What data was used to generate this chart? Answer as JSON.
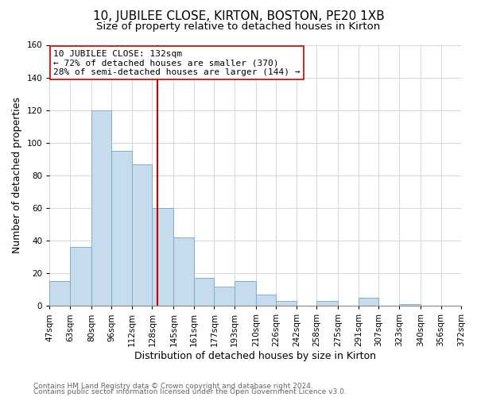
{
  "title": "10, JUBILEE CLOSE, KIRTON, BOSTON, PE20 1XB",
  "subtitle": "Size of property relative to detached houses in Kirton",
  "xlabel": "Distribution of detached houses by size in Kirton",
  "ylabel": "Number of detached properties",
  "footer_line1": "Contains HM Land Registry data © Crown copyright and database right 2024.",
  "footer_line2": "Contains public sector information licensed under the Open Government Licence v3.0.",
  "bar_edges": [
    47,
    63,
    80,
    96,
    112,
    128,
    145,
    161,
    177,
    193,
    210,
    226,
    242,
    258,
    275,
    291,
    307,
    323,
    340,
    356,
    372
  ],
  "bar_heights": [
    15,
    36,
    120,
    95,
    87,
    60,
    42,
    17,
    12,
    15,
    7,
    3,
    0,
    3,
    0,
    5,
    0,
    1,
    0,
    0
  ],
  "bar_color": "#c6dcec",
  "bar_edge_color": "#7ab0d0",
  "reference_line_x": 132,
  "reference_line_color": "#cc0000",
  "annotation_title": "10 JUBILEE CLOSE: 132sqm",
  "annotation_line1": "← 72% of detached houses are smaller (370)",
  "annotation_line2": "28% of semi-detached houses are larger (144) →",
  "annotation_box_color": "#ffffff",
  "annotation_border_color": "#cc0000",
  "ylim": [
    0,
    160
  ],
  "yticks": [
    0,
    20,
    40,
    60,
    80,
    100,
    120,
    140,
    160
  ],
  "tick_labels": [
    "47sqm",
    "63sqm",
    "80sqm",
    "96sqm",
    "112sqm",
    "128sqm",
    "145sqm",
    "161sqm",
    "177sqm",
    "193sqm",
    "210sqm",
    "226sqm",
    "242sqm",
    "258sqm",
    "275sqm",
    "291sqm",
    "307sqm",
    "323sqm",
    "340sqm",
    "356sqm",
    "372sqm"
  ],
  "background_color": "#ffffff",
  "grid_color": "#d0d8e0",
  "title_fontsize": 11,
  "subtitle_fontsize": 9.5,
  "axis_label_fontsize": 9,
  "tick_fontsize": 7.5,
  "footer_fontsize": 6.5,
  "annot_fontsize": 8
}
